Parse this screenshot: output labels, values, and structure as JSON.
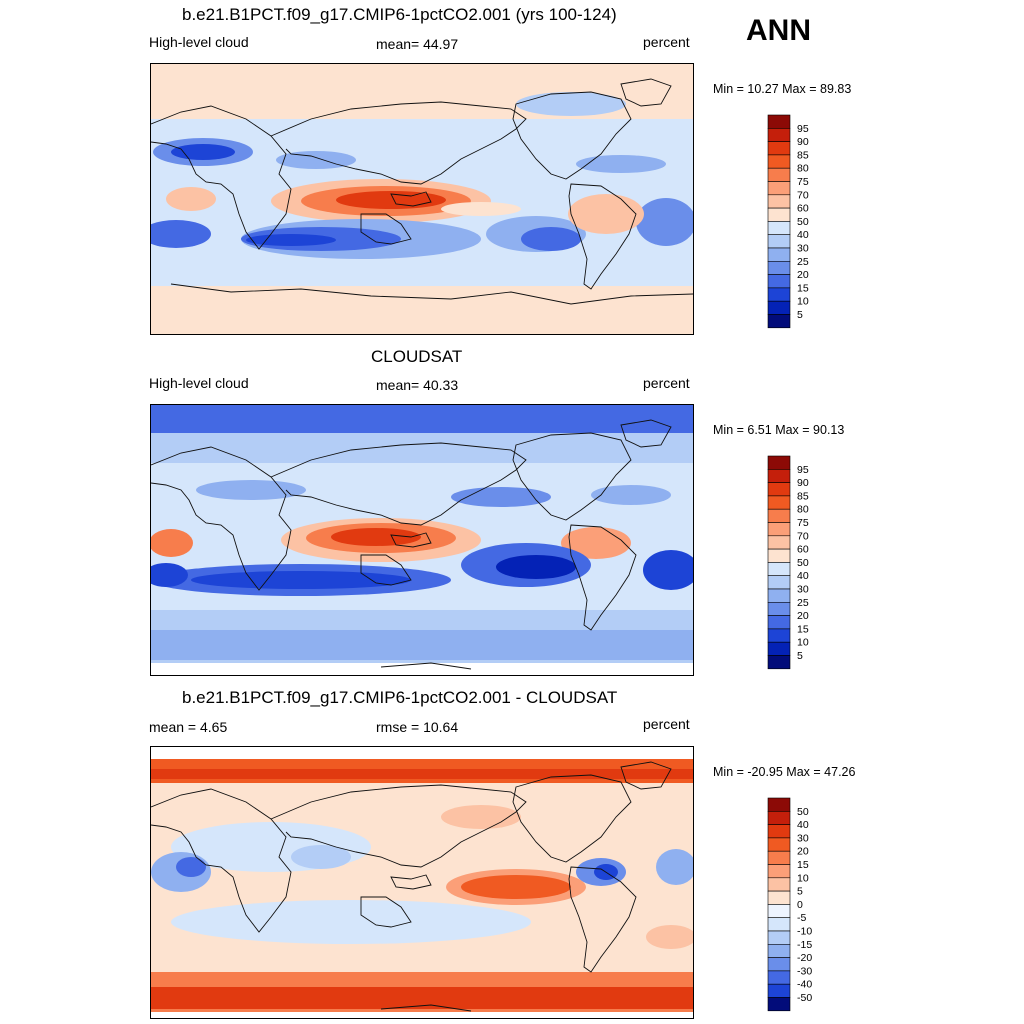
{
  "season": "ANN",
  "panels": [
    {
      "title": "b.e21.B1PCT.f09_g17.CMIP6-1pctCO2.001 (yrs 100-124)",
      "left": "High-level cloud",
      "center": "mean=  44.97",
      "right": "percent",
      "minmax": "Min =  10.27 Max =  89.83",
      "colorbar": {
        "labels": [
          "95",
          "90",
          "85",
          "80",
          "75",
          "70",
          "60",
          "50",
          "40",
          "30",
          "25",
          "20",
          "15",
          "10",
          "5"
        ],
        "colors": [
          "#8c0a06",
          "#c41f0b",
          "#e13a10",
          "#f05a22",
          "#f77d4c",
          "#fb9f78",
          "#fcc2a4",
          "#fde3d0",
          "#d5e6fb",
          "#b3cdf6",
          "#8fb0f0",
          "#6a8eea",
          "#4469e3",
          "#1d44d6",
          "#0422b6",
          "#020c7a"
        ]
      },
      "map": {
        "type": "contour-fill",
        "region": "global"
      }
    },
    {
      "title": "CLOUDSAT",
      "left": "High-level cloud",
      "center": "mean=  40.33",
      "right": "percent",
      "minmax": "Min =   6.51 Max =  90.13",
      "colorbar": {
        "labels": [
          "95",
          "90",
          "85",
          "80",
          "75",
          "70",
          "60",
          "50",
          "40",
          "30",
          "25",
          "20",
          "15",
          "10",
          "5"
        ],
        "colors": [
          "#8c0a06",
          "#c41f0b",
          "#e13a10",
          "#f05a22",
          "#f77d4c",
          "#fb9f78",
          "#fcc2a4",
          "#fde3d0",
          "#d5e6fb",
          "#b3cdf6",
          "#8fb0f0",
          "#6a8eea",
          "#4469e3",
          "#1d44d6",
          "#0422b6",
          "#020c7a"
        ]
      },
      "map": {
        "type": "contour-fill",
        "region": "global"
      }
    },
    {
      "title": "b.e21.B1PCT.f09_g17.CMIP6-1pctCO2.001 - CLOUDSAT",
      "left": "mean =   4.65",
      "center": "rmse =  10.64",
      "right": "percent",
      "minmax": "Min = -20.95 Max =  47.26",
      "colorbar": {
        "labels": [
          "50",
          "40",
          "30",
          "20",
          "15",
          "10",
          "5",
          "0",
          "-5",
          "-10",
          "-15",
          "-20",
          "-30",
          "-40",
          "-50"
        ],
        "colors": [
          "#8c0a06",
          "#c41f0b",
          "#e13a10",
          "#f05a22",
          "#f77d4c",
          "#fb9f78",
          "#fcc2a4",
          "#fde3d0",
          "#eef4fe",
          "#d5e6fb",
          "#b3cdf6",
          "#8fb0f0",
          "#6a8eea",
          "#4469e3",
          "#1d44d6",
          "#020c7a"
        ]
      },
      "map": {
        "type": "contour-fill",
        "region": "global"
      }
    }
  ]
}
